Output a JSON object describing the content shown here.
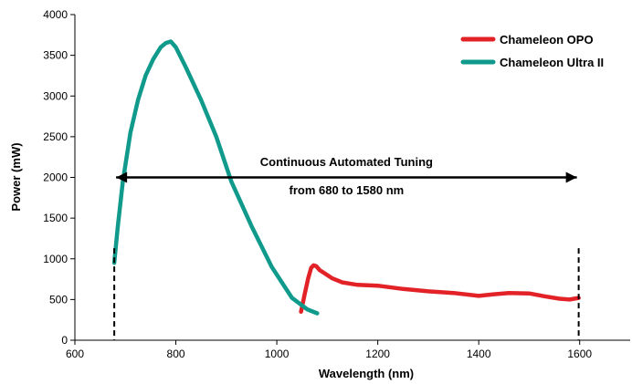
{
  "chart_data": {
    "type": "line",
    "title": "",
    "xlabel": "Wavelength (nm)",
    "ylabel": "Power (mW)",
    "xlim": [
      600,
      1700
    ],
    "ylim": [
      0,
      4000
    ],
    "xticks": [
      600,
      800,
      1000,
      1200,
      1400,
      1600
    ],
    "yticks": [
      0,
      500,
      1000,
      1500,
      2000,
      2500,
      3000,
      3500,
      4000
    ],
    "grid": false,
    "legend_position": "top-right",
    "series": [
      {
        "name": "Chameleon OPO",
        "color": "#e32227",
        "x": [
          1048,
          1055,
          1062,
          1068,
          1073,
          1078,
          1085,
          1095,
          1110,
          1130,
          1160,
          1200,
          1250,
          1300,
          1350,
          1400,
          1430,
          1460,
          1500,
          1530,
          1560,
          1580,
          1598
        ],
        "y": [
          350,
          560,
          760,
          890,
          920,
          910,
          860,
          820,
          760,
          710,
          680,
          670,
          630,
          600,
          580,
          545,
          565,
          580,
          575,
          540,
          510,
          500,
          520
        ]
      },
      {
        "name": "Chameleon Ultra II",
        "color": "#0f9a8c",
        "x": [
          678,
          685,
          695,
          710,
          725,
          740,
          755,
          770,
          780,
          790,
          800,
          820,
          850,
          880,
          910,
          950,
          990,
          1030,
          1060,
          1080
        ],
        "y": [
          950,
          1400,
          1950,
          2550,
          2950,
          3250,
          3450,
          3600,
          3650,
          3670,
          3600,
          3350,
          2950,
          2500,
          1950,
          1400,
          900,
          520,
          380,
          330
        ]
      }
    ],
    "annotations": [
      {
        "text": "Continuous Automated Tuning",
        "x": 1138,
        "y": 2140
      },
      {
        "text": "from 680 to 1580 nm",
        "x": 1138,
        "y": 1790
      }
    ],
    "range_arrow": {
      "from": 678,
      "to": 1598,
      "y": 2000
    }
  }
}
